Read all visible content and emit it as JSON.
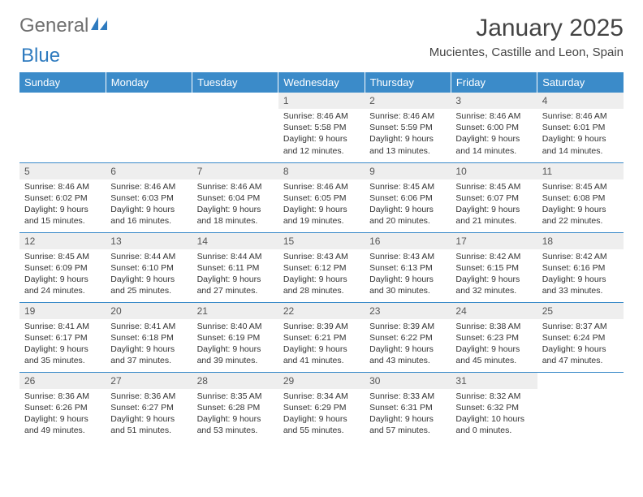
{
  "logo": {
    "text1": "General",
    "text2": "Blue"
  },
  "title": "January 2025",
  "location": "Mucientes, Castille and Leon, Spain",
  "columns": [
    "Sunday",
    "Monday",
    "Tuesday",
    "Wednesday",
    "Thursday",
    "Friday",
    "Saturday"
  ],
  "colors": {
    "header_bar": "#3b8bc9",
    "header_text": "#ffffff",
    "daynum_bg": "#eeeeee",
    "row_border": "#3b8bc9",
    "body_text": "#333333",
    "logo_gray": "#707070",
    "logo_blue": "#2f7bbf"
  },
  "weeks": [
    [
      null,
      null,
      null,
      {
        "n": "1",
        "sr": "8:46 AM",
        "ss": "5:58 PM",
        "dl": "9 hours and 12 minutes."
      },
      {
        "n": "2",
        "sr": "8:46 AM",
        "ss": "5:59 PM",
        "dl": "9 hours and 13 minutes."
      },
      {
        "n": "3",
        "sr": "8:46 AM",
        "ss": "6:00 PM",
        "dl": "9 hours and 14 minutes."
      },
      {
        "n": "4",
        "sr": "8:46 AM",
        "ss": "6:01 PM",
        "dl": "9 hours and 14 minutes."
      }
    ],
    [
      {
        "n": "5",
        "sr": "8:46 AM",
        "ss": "6:02 PM",
        "dl": "9 hours and 15 minutes."
      },
      {
        "n": "6",
        "sr": "8:46 AM",
        "ss": "6:03 PM",
        "dl": "9 hours and 16 minutes."
      },
      {
        "n": "7",
        "sr": "8:46 AM",
        "ss": "6:04 PM",
        "dl": "9 hours and 18 minutes."
      },
      {
        "n": "8",
        "sr": "8:46 AM",
        "ss": "6:05 PM",
        "dl": "9 hours and 19 minutes."
      },
      {
        "n": "9",
        "sr": "8:45 AM",
        "ss": "6:06 PM",
        "dl": "9 hours and 20 minutes."
      },
      {
        "n": "10",
        "sr": "8:45 AM",
        "ss": "6:07 PM",
        "dl": "9 hours and 21 minutes."
      },
      {
        "n": "11",
        "sr": "8:45 AM",
        "ss": "6:08 PM",
        "dl": "9 hours and 22 minutes."
      }
    ],
    [
      {
        "n": "12",
        "sr": "8:45 AM",
        "ss": "6:09 PM",
        "dl": "9 hours and 24 minutes."
      },
      {
        "n": "13",
        "sr": "8:44 AM",
        "ss": "6:10 PM",
        "dl": "9 hours and 25 minutes."
      },
      {
        "n": "14",
        "sr": "8:44 AM",
        "ss": "6:11 PM",
        "dl": "9 hours and 27 minutes."
      },
      {
        "n": "15",
        "sr": "8:43 AM",
        "ss": "6:12 PM",
        "dl": "9 hours and 28 minutes."
      },
      {
        "n": "16",
        "sr": "8:43 AM",
        "ss": "6:13 PM",
        "dl": "9 hours and 30 minutes."
      },
      {
        "n": "17",
        "sr": "8:42 AM",
        "ss": "6:15 PM",
        "dl": "9 hours and 32 minutes."
      },
      {
        "n": "18",
        "sr": "8:42 AM",
        "ss": "6:16 PM",
        "dl": "9 hours and 33 minutes."
      }
    ],
    [
      {
        "n": "19",
        "sr": "8:41 AM",
        "ss": "6:17 PM",
        "dl": "9 hours and 35 minutes."
      },
      {
        "n": "20",
        "sr": "8:41 AM",
        "ss": "6:18 PM",
        "dl": "9 hours and 37 minutes."
      },
      {
        "n": "21",
        "sr": "8:40 AM",
        "ss": "6:19 PM",
        "dl": "9 hours and 39 minutes."
      },
      {
        "n": "22",
        "sr": "8:39 AM",
        "ss": "6:21 PM",
        "dl": "9 hours and 41 minutes."
      },
      {
        "n": "23",
        "sr": "8:39 AM",
        "ss": "6:22 PM",
        "dl": "9 hours and 43 minutes."
      },
      {
        "n": "24",
        "sr": "8:38 AM",
        "ss": "6:23 PM",
        "dl": "9 hours and 45 minutes."
      },
      {
        "n": "25",
        "sr": "8:37 AM",
        "ss": "6:24 PM",
        "dl": "9 hours and 47 minutes."
      }
    ],
    [
      {
        "n": "26",
        "sr": "8:36 AM",
        "ss": "6:26 PM",
        "dl": "9 hours and 49 minutes."
      },
      {
        "n": "27",
        "sr": "8:36 AM",
        "ss": "6:27 PM",
        "dl": "9 hours and 51 minutes."
      },
      {
        "n": "28",
        "sr": "8:35 AM",
        "ss": "6:28 PM",
        "dl": "9 hours and 53 minutes."
      },
      {
        "n": "29",
        "sr": "8:34 AM",
        "ss": "6:29 PM",
        "dl": "9 hours and 55 minutes."
      },
      {
        "n": "30",
        "sr": "8:33 AM",
        "ss": "6:31 PM",
        "dl": "9 hours and 57 minutes."
      },
      {
        "n": "31",
        "sr": "8:32 AM",
        "ss": "6:32 PM",
        "dl": "10 hours and 0 minutes."
      },
      null
    ]
  ]
}
